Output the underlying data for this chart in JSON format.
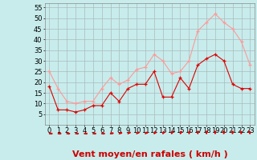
{
  "hours": [
    0,
    1,
    2,
    3,
    4,
    5,
    6,
    7,
    8,
    9,
    10,
    11,
    12,
    13,
    14,
    15,
    16,
    17,
    18,
    19,
    20,
    21,
    22,
    23
  ],
  "wind_avg": [
    18,
    7,
    7,
    6,
    7,
    9,
    9,
    15,
    11,
    17,
    19,
    19,
    25,
    13,
    13,
    22,
    17,
    28,
    31,
    33,
    30,
    19,
    17,
    17
  ],
  "wind_gust": [
    25,
    17,
    11,
    10,
    11,
    11,
    17,
    22,
    19,
    21,
    26,
    27,
    33,
    30,
    24,
    25,
    30,
    44,
    48,
    52,
    48,
    45,
    39,
    28
  ],
  "wind_dir_deg": [
    90,
    90,
    90,
    90,
    90,
    90,
    90,
    100,
    110,
    120,
    120,
    120,
    130,
    140,
    150,
    150,
    160,
    170,
    175,
    180,
    185,
    190,
    195,
    200
  ],
  "avg_color": "#dd0000",
  "gust_color": "#ff9999",
  "bg_color": "#c8ecec",
  "grid_color": "#aabbbb",
  "xlabel": "Vent moyen/en rafales ( km/h )",
  "xlabel_color": "#cc0000",
  "ylim": [
    0,
    57
  ],
  "yticks": [
    5,
    10,
    15,
    20,
    25,
    30,
    35,
    40,
    45,
    50,
    55
  ],
  "xticks": [
    0,
    1,
    2,
    3,
    4,
    5,
    6,
    7,
    8,
    9,
    10,
    11,
    12,
    13,
    14,
    15,
    16,
    17,
    18,
    19,
    20,
    21,
    22,
    23
  ],
  "tick_fontsize": 6,
  "xlabel_fontsize": 8
}
